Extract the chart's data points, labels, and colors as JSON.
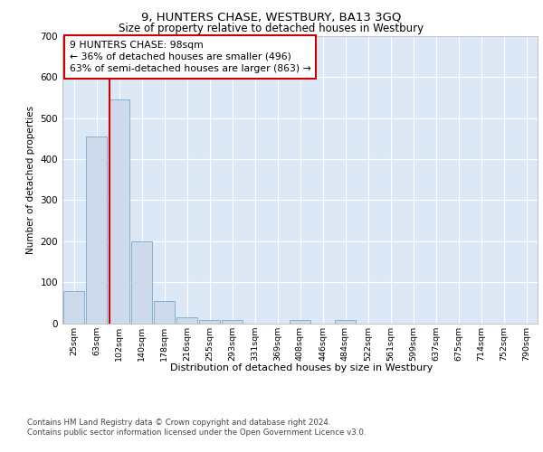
{
  "title": "9, HUNTERS CHASE, WESTBURY, BA13 3GQ",
  "subtitle": "Size of property relative to detached houses in Westbury",
  "xlabel": "Distribution of detached houses by size in Westbury",
  "ylabel": "Number of detached properties",
  "categories": [
    "25sqm",
    "63sqm",
    "102sqm",
    "140sqm",
    "178sqm",
    "216sqm",
    "255sqm",
    "293sqm",
    "331sqm",
    "369sqm",
    "408sqm",
    "446sqm",
    "484sqm",
    "522sqm",
    "561sqm",
    "599sqm",
    "637sqm",
    "675sqm",
    "714sqm",
    "752sqm",
    "790sqm"
  ],
  "values": [
    78,
    455,
    545,
    200,
    55,
    15,
    8,
    8,
    0,
    0,
    8,
    0,
    8,
    0,
    0,
    0,
    0,
    0,
    0,
    0,
    0
  ],
  "bar_color": "#ccdaeb",
  "bar_edge_color": "#7aaacb",
  "red_line_color": "#cc0000",
  "red_line_x": 1.62,
  "annotation_text": "9 HUNTERS CHASE: 98sqm\n← 36% of detached houses are smaller (496)\n63% of semi-detached houses are larger (863) →",
  "annotation_box_facecolor": "#ffffff",
  "annotation_box_edgecolor": "#cc0000",
  "ylim": [
    0,
    700
  ],
  "yticks": [
    0,
    100,
    200,
    300,
    400,
    500,
    600,
    700
  ],
  "plot_bg": "#dce8f5",
  "grid_color": "#ffffff",
  "footer1": "Contains HM Land Registry data © Crown copyright and database right 2024.",
  "footer2": "Contains public sector information licensed under the Open Government Licence v3.0."
}
